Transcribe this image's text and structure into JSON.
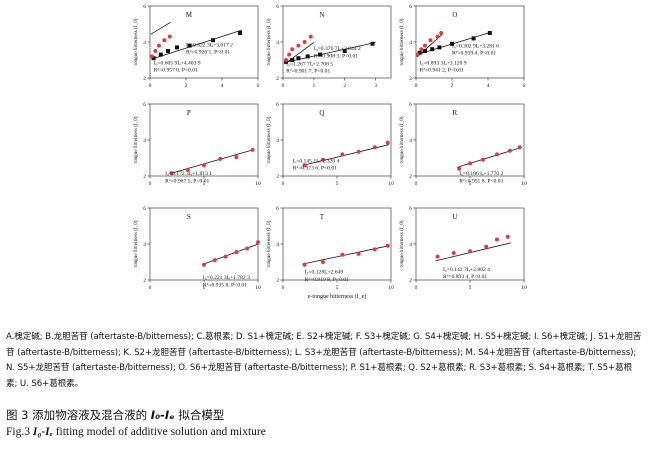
{
  "figure": {
    "xlabel": "e-tongue bitterness (I_e)",
    "ylabel": "tongue bitterness (I_0)",
    "panels": [
      {
        "letter": "M",
        "row": 0,
        "col": 0,
        "xticks": [
          0,
          2,
          4,
          6
        ],
        "yticks": [
          2,
          4,
          6
        ],
        "xlim": [
          0,
          6
        ],
        "ylim": [
          2,
          6
        ],
        "series": [
          {
            "marker": "square",
            "color": "#111111",
            "points": [
              [
                0.2,
                3.1
              ],
              [
                0.6,
                3.3
              ],
              [
                1.0,
                3.5
              ],
              [
                1.5,
                3.7
              ],
              [
                2.2,
                3.8
              ],
              [
                3.5,
                4.1
              ],
              [
                5.0,
                4.5
              ]
            ],
            "fit": [
              0.1,
              5.1,
              0.3223,
              3.0172
            ]
          },
          {
            "marker": "circle",
            "color": "#e03a3a",
            "points": [
              [
                0.1,
                3.2
              ],
              [
                0.3,
                3.5
              ],
              [
                0.5,
                3.8
              ],
              [
                0.8,
                4.1
              ],
              [
                1.1,
                4.3
              ]
            ],
            "fit": [
              0.05,
              1.15,
              0.6059,
              4.4039
            ]
          }
        ],
        "equations": [
          {
            "text": "I₀=0.322 3Iₑ+3.017 2",
            "x": 2.0,
            "y": 3.75
          },
          {
            "text": "R²=0.920 1, P<0.01",
            "x": 2.0,
            "y": 3.35
          },
          {
            "text": "I₀=0.605 9Iₑ+4.403 9",
            "x": 0.2,
            "y": 2.75
          },
          {
            "text": "R²=0.957 0, P<0.01",
            "x": 0.2,
            "y": 2.35
          }
        ]
      },
      {
        "letter": "N",
        "row": 0,
        "col": 1,
        "xticks": [
          0,
          1,
          2,
          3
        ],
        "yticks": [
          2,
          4,
          6
        ],
        "xlim": [
          0,
          3.5
        ],
        "ylim": [
          2,
          6
        ],
        "series": [
          {
            "marker": "square",
            "color": "#111111",
            "points": [
              [
                0.1,
                2.9
              ],
              [
                0.3,
                3.0
              ],
              [
                0.5,
                3.1
              ],
              [
                0.8,
                3.2
              ],
              [
                1.2,
                3.3
              ],
              [
                2.0,
                3.5
              ],
              [
                2.9,
                3.9
              ]
            ],
            "fit": [
              0.05,
              3.0,
              0.3767,
              2.8442
            ]
          },
          {
            "marker": "circle",
            "color": "#e03a3a",
            "points": [
              [
                0.1,
                3.0
              ],
              [
                0.2,
                3.3
              ],
              [
                0.3,
                3.6
              ],
              [
                0.5,
                3.8
              ],
              [
                0.7,
                4.0
              ],
              [
                0.9,
                4.3
              ]
            ],
            "fit": [
              0.05,
              1.0,
              1.2677,
              2.7085
            ]
          }
        ],
        "equations": [
          {
            "text": "I₀=0.376 7Iₑ+2.844 2",
            "x": 1.0,
            "y": 3.55
          },
          {
            "text": "R²=0.908 3, P<0.01",
            "x": 1.0,
            "y": 3.15
          },
          {
            "text": "I₀=1.267 7Iₑ+2.708 5",
            "x": 0.1,
            "y": 2.7
          },
          {
            "text": "R²=0.901 7, P<0.01",
            "x": 0.1,
            "y": 2.3
          }
        ]
      },
      {
        "letter": "O",
        "row": 0,
        "col": 2,
        "xticks": [
          0,
          2,
          4,
          6
        ],
        "yticks": [
          2,
          4,
          6
        ],
        "xlim": [
          0,
          6
        ],
        "ylim": [
          2,
          6
        ],
        "series": [
          {
            "marker": "square",
            "color": "#111111",
            "points": [
              [
                0.2,
                3.4
              ],
              [
                0.5,
                3.5
              ],
              [
                0.9,
                3.6
              ],
              [
                1.3,
                3.7
              ],
              [
                2.0,
                3.9
              ],
              [
                3.2,
                4.2
              ],
              [
                4.1,
                4.5
              ]
            ],
            "fit": [
              0.1,
              4.2,
              0.3029,
              3.2816
            ]
          },
          {
            "marker": "circle",
            "color": "#e03a3a",
            "points": [
              [
                0.1,
                3.3
              ],
              [
                0.3,
                3.6
              ],
              [
                0.5,
                3.8
              ],
              [
                0.8,
                4.1
              ],
              [
                1.2,
                4.3
              ],
              [
                1.4,
                4.5
              ]
            ],
            "fit": [
              0.05,
              1.5,
              0.8933,
              3.1209
            ]
          }
        ],
        "equations": [
          {
            "text": "I₀=0.302 9Iₑ+3.281 6",
            "x": 2.0,
            "y": 3.7
          },
          {
            "text": "R²=0.939 4, P<0.01",
            "x": 2.0,
            "y": 3.3
          },
          {
            "text": "I₀=0.893 3Iₑ+3.120 9",
            "x": 0.2,
            "y": 2.75
          },
          {
            "text": "R²=0.941 2, P<0.01",
            "x": 0.2,
            "y": 2.35
          }
        ]
      },
      {
        "letter": "P",
        "row": 1,
        "col": 0,
        "xticks": [
          0,
          5,
          10
        ],
        "yticks": [
          2,
          4,
          6
        ],
        "xlim": [
          0,
          10
        ],
        "ylim": [
          2,
          6
        ],
        "series": [
          {
            "marker": "circle",
            "color": "#e03a3a",
            "points": [
              [
                2.0,
                2.15
              ],
              [
                3.5,
                2.35
              ],
              [
                5.0,
                2.6
              ],
              [
                6.5,
                2.95
              ],
              [
                8.0,
                3.05
              ],
              [
                9.5,
                3.45
              ]
            ],
            "fit": [
              1.8,
              9.6,
              0.1723,
              1.8131
            ]
          }
        ],
        "equations": [
          {
            "text": "I₀=0.172 3Iₑ+1.813 1",
            "x": 1.4,
            "y": 2.05
          },
          {
            "text": "R²=0.967 5, P<0.01",
            "x": 1.4,
            "y": 1.65
          }
        ]
      },
      {
        "letter": "Q",
        "row": 1,
        "col": 1,
        "xticks": [
          0,
          5,
          10
        ],
        "yticks": [
          2,
          4,
          6
        ],
        "xlim": [
          0,
          10
        ],
        "ylim": [
          2,
          6
        ],
        "series": [
          {
            "marker": "circle",
            "color": "#e03a3a",
            "points": [
              [
                2.0,
                2.6
              ],
              [
                3.7,
                2.9
              ],
              [
                5.5,
                3.2
              ],
              [
                7.0,
                3.35
              ],
              [
                8.5,
                3.6
              ],
              [
                9.7,
                3.85
              ]
            ],
            "fit": [
              1.8,
              9.8,
              0.1451,
              2.3204
            ]
          }
        ],
        "equations": [
          {
            "text": "Iₒ=0.145 1Iₑ+2.320 4",
            "x": 0.9,
            "y": 2.75
          },
          {
            "text": "R²=0.973 6, P<0.01",
            "x": 0.9,
            "y": 2.35
          }
        ]
      },
      {
        "letter": "R",
        "row": 1,
        "col": 2,
        "xticks": [
          0,
          5,
          10
        ],
        "yticks": [
          2,
          4,
          6
        ],
        "xlim": [
          0,
          10
        ],
        "ylim": [
          2,
          6
        ],
        "series": [
          {
            "marker": "circle",
            "color": "#e03a3a",
            "points": [
              [
                4.0,
                2.4
              ],
              [
                5.0,
                2.7
              ],
              [
                6.2,
                2.9
              ],
              [
                7.5,
                3.2
              ],
              [
                8.7,
                3.4
              ],
              [
                9.6,
                3.6
              ]
            ],
            "fit": [
              3.8,
              9.8,
              0.186,
              1.7702
            ]
          }
        ],
        "equations": [
          {
            "text": "I₀=0.186 Iₑ+1.770 2",
            "x": 4.0,
            "y": 2.05
          },
          {
            "text": "R²=0.951 8, P<0.01",
            "x": 4.0,
            "y": 1.65
          }
        ]
      },
      {
        "letter": "S",
        "row": 2,
        "col": 0,
        "xticks": [
          0,
          5,
          10
        ],
        "yticks": [
          2,
          4,
          6
        ],
        "xlim": [
          0,
          10
        ],
        "ylim": [
          2,
          6
        ],
        "series": [
          {
            "marker": "circle",
            "color": "#e03a3a",
            "points": [
              [
                5.0,
                2.85
              ],
              [
                6.0,
                3.1
              ],
              [
                7.0,
                3.3
              ],
              [
                8.0,
                3.55
              ],
              [
                9.0,
                3.75
              ],
              [
                10.0,
                4.1
              ]
            ],
            "fit": [
              4.8,
              10.1,
              0.2213,
              1.7823
            ]
          }
        ],
        "equations": [
          {
            "text": "I₀=0.221 3Iₑ+1.782 3",
            "x": 4.9,
            "y": 2.05
          },
          {
            "text": "R²=0.935 8, P<0.01",
            "x": 4.9,
            "y": 1.65
          }
        ]
      },
      {
        "letter": "T",
        "row": 2,
        "col": 1,
        "xticks": [
          0,
          5,
          10
        ],
        "yticks": [
          2,
          4,
          6
        ],
        "xlim": [
          0,
          10
        ],
        "ylim": [
          2,
          6
        ],
        "series": [
          {
            "marker": "circle",
            "color": "#e03a3a",
            "points": [
              [
                2.0,
                2.85
              ],
              [
                3.7,
                3.0
              ],
              [
                5.5,
                3.4
              ],
              [
                7.0,
                3.45
              ],
              [
                8.5,
                3.7
              ],
              [
                9.7,
                3.9
              ]
            ],
            "fit": [
              1.8,
              9.8,
              0.128,
              2.649
            ]
          }
        ],
        "equations": [
          {
            "text": "I₀=0.128Iₑ+2.649",
            "x": 2.0,
            "y": 2.35
          },
          {
            "text": "R²=0.919 8, P<0.01",
            "x": 2.0,
            "y": 1.95
          }
        ]
      },
      {
        "letter": "U",
        "row": 2,
        "col": 2,
        "xticks": [
          0,
          5,
          10
        ],
        "yticks": [
          2,
          4,
          6
        ],
        "xlim": [
          0,
          10
        ],
        "ylim": [
          2,
          6
        ],
        "series": [
          {
            "marker": "circle",
            "color": "#e03a3a",
            "points": [
              [
                2.0,
                3.3
              ],
              [
                3.5,
                3.5
              ],
              [
                5.0,
                3.6
              ],
              [
                6.5,
                3.85
              ],
              [
                7.5,
                4.25
              ],
              [
                8.5,
                4.4
              ]
            ],
            "fit": [
              1.8,
              8.8,
              0.1437,
              2.8024
            ]
          }
        ],
        "equations": [
          {
            "text": "I₀=0.143 7Iₑ+2.802 4",
            "x": 2.5,
            "y": 2.5
          },
          {
            "text": "R²=0.893 4, P<0.01",
            "x": 2.5,
            "y": 2.1
          }
        ]
      }
    ]
  },
  "legend_text": "A.槐定碱; B.龙胆苦苷 (aftertaste-B/bitterness); C.葛根素; D. S1+槐定碱; E. S2+槐定碱; F. S3+槐定碱; G. S4+槐定碱; H. S5+槐定碱; I. S6+槐定碱; J. S1+龙胆苦苷 (aftertaste-B/bitterness); K. S2+龙胆苦苷 (aftertaste-B/bitterness); L. S3+龙胆苦苷 (aftertaste-B/bitterness); M. S4+龙胆苦苷 (aftertaste-B/bitterness); N. S5+龙胆苦苷 (aftertaste-B/bitterness); O. S6+龙胆苦苷 (aftertaste-B/bitterness); P. S1+葛根素; Q. S2+葛根素; R. S3+葛根素; S. S4+葛根素; T. S5+葛根素; U. S6+葛根素。",
  "title_cn_prefix": "图 3   添加物溶液及混合液的 ",
  "title_cn_vars": "I₀-Iₑ",
  "title_cn_suffix": " 拟合模型",
  "title_en_prefix": "Fig.3   ",
  "title_en_vars": "I₀-Iₑ",
  "title_en_suffix": " fitting model of additive solution and mixture",
  "colors": {
    "fit_line": "#111111",
    "red_marker": "#e03a3a",
    "black_marker": "#111111"
  }
}
